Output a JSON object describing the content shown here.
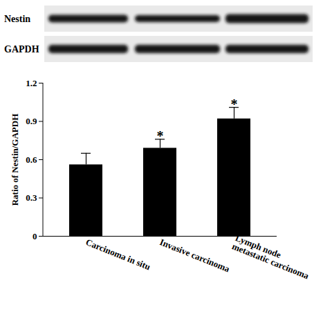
{
  "chart_data": {
    "type": "bar",
    "blot_labels": [
      "Nestin",
      "GAPDH"
    ],
    "y_label": "Ratio of Nestin/GAPDH",
    "categories": [
      "Carcinoma in situ",
      "Invasive carcinoma",
      "Lymph node metastatic carcinoma"
    ],
    "values": [
      0.56,
      0.69,
      0.92
    ],
    "error": [
      0.09,
      0.07,
      0.09
    ],
    "annotations": [
      {
        "category": "Invasive carcinoma",
        "text": "*"
      },
      {
        "category": "Lymph node metastatic carcinoma",
        "text": "*"
      }
    ],
    "color": "#000000",
    "ylim": [
      0,
      1.2
    ],
    "yticks": [
      0,
      0.3,
      0.6,
      0.9,
      1.2
    ],
    "grid": false
  }
}
